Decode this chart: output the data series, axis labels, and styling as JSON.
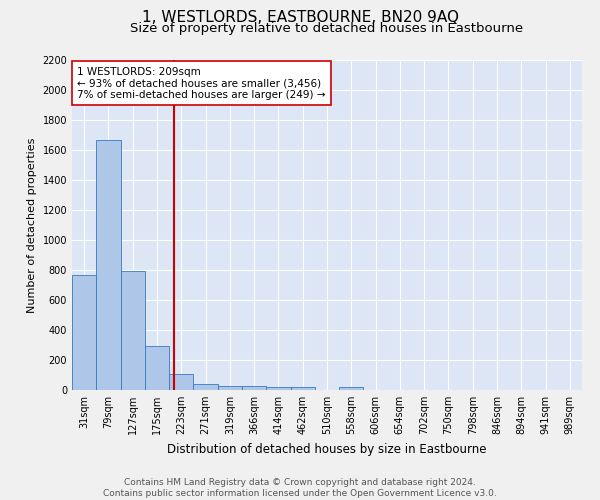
{
  "title": "1, WESTLORDS, EASTBOURNE, BN20 9AQ",
  "subtitle": "Size of property relative to detached houses in Eastbourne",
  "xlabel": "Distribution of detached houses by size in Eastbourne",
  "ylabel": "Number of detached properties",
  "categories": [
    "31sqm",
    "79sqm",
    "127sqm",
    "175sqm",
    "223sqm",
    "271sqm",
    "319sqm",
    "366sqm",
    "414sqm",
    "462sqm",
    "510sqm",
    "558sqm",
    "606sqm",
    "654sqm",
    "702sqm",
    "750sqm",
    "798sqm",
    "846sqm",
    "894sqm",
    "941sqm",
    "989sqm"
  ],
  "values": [
    770,
    1670,
    795,
    295,
    110,
    40,
    30,
    25,
    20,
    20,
    0,
    20,
    0,
    0,
    0,
    0,
    0,
    0,
    0,
    0,
    0
  ],
  "bar_color": "#aec6e8",
  "bar_edge_color": "#3a7abf",
  "red_line_x": 3.72,
  "red_line_color": "#cc0000",
  "annotation_text": "1 WESTLORDS: 209sqm\n← 93% of detached houses are smaller (3,456)\n7% of semi-detached houses are larger (249) →",
  "annotation_box_color": "#ffffff",
  "annotation_box_edge": "#cc0000",
  "ylim": [
    0,
    2200
  ],
  "yticks": [
    0,
    200,
    400,
    600,
    800,
    1000,
    1200,
    1400,
    1600,
    1800,
    2000,
    2200
  ],
  "background_color": "#dce6f5",
  "grid_color": "#ffffff",
  "fig_bg_color": "#f0f0f0",
  "footer": "Contains HM Land Registry data © Crown copyright and database right 2024.\nContains public sector information licensed under the Open Government Licence v3.0.",
  "title_fontsize": 11,
  "subtitle_fontsize": 9.5,
  "ylabel_fontsize": 8,
  "xlabel_fontsize": 8.5,
  "tick_fontsize": 7,
  "annot_fontsize": 7.5,
  "footer_fontsize": 6.5
}
